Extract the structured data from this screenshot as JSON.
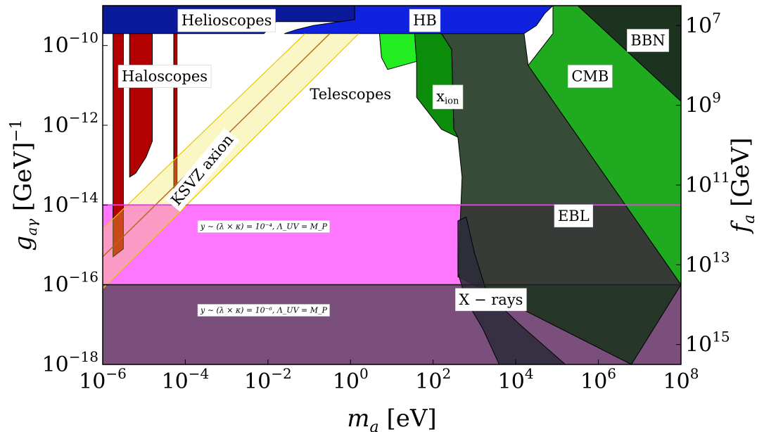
{
  "chart_data": {
    "type": "area",
    "xlabel": "m_a [eV]",
    "ylabel_left": "g_aγ [GeV]^-1",
    "ylabel_right": "f_a [GeV]",
    "x_scale": "log",
    "y_scale": "log",
    "xlim": [
      1e-06,
      100000000.0
    ],
    "ylim": [
      1e-18,
      1e-09
    ],
    "x_ticks": [
      {
        "base": "10",
        "exp": "−6"
      },
      {
        "base": "10",
        "exp": "−4"
      },
      {
        "base": "10",
        "exp": "−2"
      },
      {
        "base": "10",
        "exp": "0"
      },
      {
        "base": "10",
        "exp": "2"
      },
      {
        "base": "10",
        "exp": "4"
      },
      {
        "base": "10",
        "exp": "6"
      },
      {
        "base": "10",
        "exp": "8"
      }
    ],
    "y_ticks_left": [
      {
        "base": "10",
        "exp": "−10"
      },
      {
        "base": "10",
        "exp": "−12"
      },
      {
        "base": "10",
        "exp": "−14"
      },
      {
        "base": "10",
        "exp": "−16"
      },
      {
        "base": "10",
        "exp": "−18"
      }
    ],
    "y_ticks_right": [
      {
        "base": "10",
        "exp": "7"
      },
      {
        "base": "10",
        "exp": "9"
      },
      {
        "base": "10",
        "exp": "11"
      },
      {
        "base": "10",
        "exp": "13"
      },
      {
        "base": "10",
        "exp": "15"
      }
    ],
    "grid": false,
    "regions": [
      {
        "name": "Helioscopes",
        "color": "#0a1a9a",
        "points": [
          [
            -6,
            -9
          ],
          [
            0.1,
            -9
          ],
          [
            0.1,
            -9.4
          ],
          [
            -1.8,
            -9.4
          ],
          [
            -2.1,
            -9.7
          ],
          [
            -3.2,
            -9.7
          ],
          [
            -6,
            -9.7
          ]
        ]
      },
      {
        "name": "HB",
        "color": "#0f22e0",
        "points": [
          [
            0.1,
            -9
          ],
          [
            4.9,
            -9
          ],
          [
            4.7,
            -9.2
          ],
          [
            4.5,
            -9.5
          ],
          [
            4.2,
            -9.7
          ],
          [
            -1.6,
            -9.7
          ],
          [
            -1.3,
            -9.6
          ],
          [
            -0.9,
            -9.5
          ],
          [
            0.1,
            -9.35
          ]
        ]
      },
      {
        "name": "BBN",
        "color": "#1c3320",
        "points": [
          [
            5.5,
            -9
          ],
          [
            8,
            -9
          ],
          [
            8,
            -11.4
          ],
          [
            5.5,
            -9
          ]
        ]
      },
      {
        "name": "CMB",
        "color": "#1faa1f",
        "points": [
          [
            4.9,
            -9
          ],
          [
            5.5,
            -9
          ],
          [
            8,
            -11.4
          ],
          [
            8,
            -16
          ],
          [
            4.3,
            -10.5
          ],
          [
            4.9,
            -9.7
          ]
        ]
      },
      {
        "name": "x_ion",
        "color": "#0b8c0b",
        "points": [
          [
            1.55,
            -9.7
          ],
          [
            2.2,
            -9.7
          ],
          [
            2.45,
            -10.1
          ],
          [
            2.5,
            -12.1
          ],
          [
            2.6,
            -12.3
          ],
          [
            2.2,
            -12.1
          ],
          [
            1.6,
            -11.3
          ],
          [
            1.6,
            -10.4
          ]
        ]
      },
      {
        "name": "green-strip",
        "color": "#22ee22",
        "points": [
          [
            0.7,
            -9.7
          ],
          [
            1.55,
            -9.7
          ],
          [
            1.6,
            -10.4
          ],
          [
            0.9,
            -10.6
          ],
          [
            0.75,
            -10.3
          ]
        ]
      },
      {
        "name": "EBL",
        "color": "#1a331c",
        "points": [
          [
            2.2,
            -9.7
          ],
          [
            4.2,
            -9.7
          ],
          [
            4.3,
            -10.5
          ],
          [
            8,
            -16
          ],
          [
            6.8,
            -18
          ],
          [
            2.6,
            -15.8
          ],
          [
            2.7,
            -13.3
          ],
          [
            2.6,
            -12.3
          ],
          [
            2.5,
            -12.1
          ],
          [
            2.45,
            -10.1
          ]
        ]
      },
      {
        "name": "X-rays",
        "color": "#2c2c3a",
        "points": [
          [
            2.6,
            -14.4
          ],
          [
            2.8,
            -14.3
          ],
          [
            3,
            -15.2
          ],
          [
            3.3,
            -16.2
          ],
          [
            4.1,
            -17
          ],
          [
            5.2,
            -18
          ],
          [
            3.6,
            -18
          ],
          [
            3.2,
            -17.1
          ],
          [
            2.8,
            -16.4
          ],
          [
            2.6,
            -15.7
          ]
        ]
      },
      {
        "name": "Haloscopes-bar-1",
        "color": "#b30000",
        "points": [
          [
            -5.75,
            -9.7
          ],
          [
            -5.5,
            -9.7
          ],
          [
            -5.5,
            -15.1
          ],
          [
            -5.75,
            -15.3
          ]
        ]
      },
      {
        "name": "Haloscopes-bar-2",
        "color": "#b30000",
        "points": [
          [
            -5.35,
            -9.7
          ],
          [
            -4.8,
            -9.7
          ],
          [
            -4.8,
            -12.4
          ],
          [
            -4.95,
            -12.8
          ],
          [
            -5.2,
            -13.2
          ],
          [
            -5.35,
            -13.3
          ]
        ]
      },
      {
        "name": "Haloscopes-line",
        "color": "#b30000",
        "points": [
          [
            -4.28,
            -9.7
          ],
          [
            -4.2,
            -9.7
          ],
          [
            -4.2,
            -13.7
          ],
          [
            -4.28,
            -13.7
          ]
        ]
      },
      {
        "name": "y-1e-4-band",
        "color": "#ff77ff",
        "points": [
          [
            -6,
            -14
          ],
          [
            8,
            -14
          ],
          [
            8,
            -16
          ],
          [
            -6,
            -16
          ]
        ]
      },
      {
        "name": "y-1e-6-band",
        "color": "#7a4f7c",
        "points": [
          [
            -6,
            -16
          ],
          [
            8,
            -16
          ],
          [
            8,
            -18
          ],
          [
            -6,
            -18
          ]
        ]
      }
    ],
    "ksvz_band": {
      "label": "KSVZ axion",
      "lower": [
        [
          -6,
          -16.1
        ],
        [
          0.2,
          -9.7
        ]
      ],
      "upper": [
        [
          -6,
          -14.6
        ],
        [
          -1.1,
          -9.7
        ]
      ],
      "center": [
        [
          -6,
          -15.3
        ],
        [
          -0.5,
          -9.7
        ]
      ]
    },
    "lines": [
      {
        "name": "y-1e-4-line",
        "value": -14,
        "color": "#e63ee6"
      },
      {
        "name": "y-1e-6-line",
        "value": -16,
        "color": "#222222"
      }
    ],
    "annotations": [
      {
        "name": "helioscopes-label",
        "text": "Helioscopes",
        "pos": [
          -3,
          -9.4
        ],
        "box": true
      },
      {
        "name": "hb-label",
        "text": "HB",
        "pos": [
          1.8,
          -9.4
        ],
        "box": true
      },
      {
        "name": "bbn-label",
        "text": "BBN",
        "pos": [
          7.2,
          -9.9
        ],
        "box": true
      },
      {
        "name": "cmb-label",
        "text": "CMB",
        "pos": [
          5.8,
          -10.8
        ],
        "box": true
      },
      {
        "name": "haloscopes-label",
        "text": "Haloscopes",
        "pos": [
          -4.5,
          -10.8
        ],
        "box": true
      },
      {
        "name": "telescopes-label",
        "text": "Telescopes",
        "pos": [
          0,
          -11.25
        ],
        "box": false
      },
      {
        "name": "xion-label",
        "text": "x",
        "sub": "ion",
        "pos": [
          2.35,
          -11.3
        ],
        "box": true
      },
      {
        "name": "ebl-label",
        "text": "EBL",
        "pos": [
          5.4,
          -14.3
        ],
        "box": true
      },
      {
        "name": "xrays-label",
        "text": "X − rays",
        "pos": [
          3.4,
          -16.4
        ],
        "box": true
      },
      {
        "name": "y4-label",
        "text": "y ∼ (λ × κ) = 10⁻⁴,  Λ_UV = M_P",
        "pos": [
          -2.1,
          -14.55
        ],
        "box": true,
        "small": true
      },
      {
        "name": "y6-label",
        "text": "y ∼ (λ × κ) = 10⁻⁶,  Λ_UV = M_P",
        "pos": [
          -2.1,
          -16.65
        ],
        "box": true,
        "small": true
      }
    ]
  }
}
